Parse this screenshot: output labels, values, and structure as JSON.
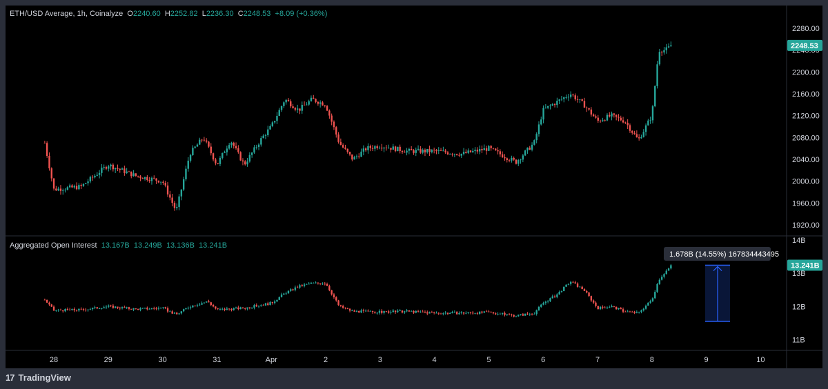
{
  "header": {
    "symbol": "ETH/USD Average, 1h, Coinalyze",
    "o_label": "O",
    "o": "2240.60",
    "h_label": "H",
    "h": "2252.82",
    "l_label": "L",
    "l": "2236.30",
    "c_label": "C",
    "c": "2248.53",
    "change": "+8.09 (+0.36%)"
  },
  "oi_header": {
    "title": "Aggregated Open Interest",
    "values": [
      "13.167B",
      "13.249B",
      "13.136B",
      "13.241B"
    ]
  },
  "footer": {
    "brand": "TradingView",
    "logo": "tradingview-logo-icon"
  },
  "colors": {
    "up": "#26a69a",
    "down": "#ef5350",
    "background": "#000000",
    "text": "#d1d4dc",
    "measure": "#2962ff",
    "badge": "#26a69a"
  },
  "chart_data": [
    {
      "type": "candlestick",
      "title": "ETH/USD Average, 1h, Coinalyze",
      "ylim": [
        1910,
        2290
      ],
      "y_ticks": [
        "2280.00",
        "2240.00",
        "2200.00",
        "2160.00",
        "2120.00",
        "2080.00",
        "2040.00",
        "2000.00",
        "1960.00",
        "1920.00"
      ],
      "last_price_label": "2248.53",
      "x_ticks": [
        "28",
        "29",
        "30",
        "31",
        "Apr",
        "2",
        "3",
        "4",
        "5",
        "6",
        "7",
        "8",
        "9",
        "10"
      ],
      "close_series_approx": [
        {
          "x": "Mar 27 20:00",
          "y": 2070
        },
        {
          "x": "Mar 28 00:00",
          "y": 1985
        },
        {
          "x": "Mar 28 12:00",
          "y": 1990
        },
        {
          "x": "Mar 29 00:00",
          "y": 2030
        },
        {
          "x": "Mar 29 12:00",
          "y": 2010
        },
        {
          "x": "Mar 30 00:00",
          "y": 2000
        },
        {
          "x": "Mar 30 06:00",
          "y": 1945
        },
        {
          "x": "Mar 30 12:00",
          "y": 2050
        },
        {
          "x": "Mar 30 18:00",
          "y": 2080
        },
        {
          "x": "Mar 31 00:00",
          "y": 2030
        },
        {
          "x": "Mar 31 06:00",
          "y": 2075
        },
        {
          "x": "Mar 31 12:00",
          "y": 2030
        },
        {
          "x": "Mar 31 20:00",
          "y": 2080
        },
        {
          "x": "Apr 1 00:00",
          "y": 2100
        },
        {
          "x": "Apr 1 06:00",
          "y": 2150
        },
        {
          "x": "Apr 1 12:00",
          "y": 2130
        },
        {
          "x": "Apr 1 18:00",
          "y": 2150
        },
        {
          "x": "Apr 2 00:00",
          "y": 2140
        },
        {
          "x": "Apr 2 06:00",
          "y": 2070
        },
        {
          "x": "Apr 2 12:00",
          "y": 2040
        },
        {
          "x": "Apr 2 18:00",
          "y": 2060
        },
        {
          "x": "Apr 3 00:00",
          "y": 2065
        },
        {
          "x": "Apr 3 12:00",
          "y": 2055
        },
        {
          "x": "Apr 4 00:00",
          "y": 2055
        },
        {
          "x": "Apr 4 12:00",
          "y": 2050
        },
        {
          "x": "Apr 5 00:00",
          "y": 2060
        },
        {
          "x": "Apr 5 12:00",
          "y": 2035
        },
        {
          "x": "Apr 5 20:00",
          "y": 2070
        },
        {
          "x": "Apr 6 00:00",
          "y": 2130
        },
        {
          "x": "Apr 6 06:00",
          "y": 2145
        },
        {
          "x": "Apr 6 12:00",
          "y": 2160
        },
        {
          "x": "Apr 6 18:00",
          "y": 2140
        },
        {
          "x": "Apr 7 00:00",
          "y": 2110
        },
        {
          "x": "Apr 7 06:00",
          "y": 2120
        },
        {
          "x": "Apr 7 12:00",
          "y": 2110
        },
        {
          "x": "Apr 7 18:00",
          "y": 2075
        },
        {
          "x": "Apr 8 00:00",
          "y": 2120
        },
        {
          "x": "Apr 8 03:00",
          "y": 2240
        },
        {
          "x": "Apr 8 06:00",
          "y": 2240
        },
        {
          "x": "Apr 8 09:00",
          "y": 2248.53
        }
      ]
    },
    {
      "type": "candlestick",
      "title": "Aggregated Open Interest",
      "ylim": [
        10.8,
        14
      ],
      "y_ticks": [
        "14B",
        "13B",
        "12B",
        "11B"
      ],
      "last_value_label": "13.241B",
      "measure_tooltip": "1.678B (14.55%) 167834443495",
      "close_series_approx": [
        {
          "x": "Mar 27 20:00",
          "y": 12.2
        },
        {
          "x": "Mar 28 00:00",
          "y": 11.88
        },
        {
          "x": "Mar 28 12:00",
          "y": 11.9
        },
        {
          "x": "Mar 29 00:00",
          "y": 12.0
        },
        {
          "x": "Mar 29 12:00",
          "y": 11.92
        },
        {
          "x": "Mar 30 00:00",
          "y": 11.95
        },
        {
          "x": "Mar 30 06:00",
          "y": 11.75
        },
        {
          "x": "Mar 30 12:00",
          "y": 12.0
        },
        {
          "x": "Mar 30 20:00",
          "y": 12.15
        },
        {
          "x": "Mar 31 00:00",
          "y": 11.9
        },
        {
          "x": "Mar 31 12:00",
          "y": 11.95
        },
        {
          "x": "Apr 1 00:00",
          "y": 12.1
        },
        {
          "x": "Apr 1 06:00",
          "y": 12.4
        },
        {
          "x": "Apr 1 12:00",
          "y": 12.6
        },
        {
          "x": "Apr 1 18:00",
          "y": 12.7
        },
        {
          "x": "Apr 2 00:00",
          "y": 12.7
        },
        {
          "x": "Apr 2 06:00",
          "y": 12.0
        },
        {
          "x": "Apr 2 12:00",
          "y": 11.85
        },
        {
          "x": "Apr 3 00:00",
          "y": 11.83
        },
        {
          "x": "Apr 3 12:00",
          "y": 11.85
        },
        {
          "x": "Apr 4 00:00",
          "y": 11.8
        },
        {
          "x": "Apr 4 12:00",
          "y": 11.8
        },
        {
          "x": "Apr 5 00:00",
          "y": 11.82
        },
        {
          "x": "Apr 5 12:00",
          "y": 11.72
        },
        {
          "x": "Apr 5 20:00",
          "y": 11.8
        },
        {
          "x": "Apr 6 00:00",
          "y": 12.1
        },
        {
          "x": "Apr 6 06:00",
          "y": 12.35
        },
        {
          "x": "Apr 6 12:00",
          "y": 12.75
        },
        {
          "x": "Apr 6 18:00",
          "y": 12.5
        },
        {
          "x": "Apr 7 00:00",
          "y": 11.95
        },
        {
          "x": "Apr 7 06:00",
          "y": 12.0
        },
        {
          "x": "Apr 7 12:00",
          "y": 11.85
        },
        {
          "x": "Apr 7 18:00",
          "y": 11.8
        },
        {
          "x": "Apr 8 00:00",
          "y": 12.2
        },
        {
          "x": "Apr 8 03:00",
          "y": 12.8
        },
        {
          "x": "Apr 8 06:00",
          "y": 13.05
        },
        {
          "x": "Apr 8 09:00",
          "y": 13.241
        }
      ]
    }
  ]
}
